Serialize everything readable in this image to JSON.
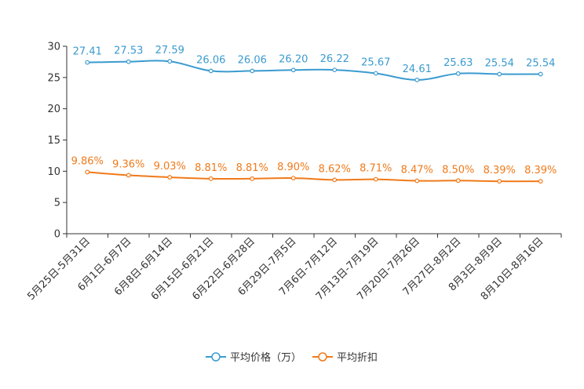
{
  "chart_data": {
    "type": "line",
    "title": "",
    "xlabel": "",
    "ylabel": "",
    "ylim": [
      0,
      30
    ],
    "yticks": [
      0,
      5,
      10,
      15,
      20,
      25,
      30
    ],
    "grid": false,
    "legend_position": "bottom-center",
    "categories": [
      "5月25日-5月31日",
      "6月1日-6月7日",
      "6月8日-6月14日",
      "6月15日-6月21日",
      "6月22日-6月28日",
      "6月29日-7月5日",
      "7月6日-7月12日",
      "7月13日-7月19日",
      "7月20日-7月26日",
      "7月27日-8月2日",
      "8月3日-8月9日",
      "8月10日-8月16日"
    ],
    "series": [
      {
        "name": "平均价格（万）",
        "color": "#3a9bd0",
        "values": [
          27.41,
          27.53,
          27.59,
          26.06,
          26.06,
          26.2,
          26.22,
          25.67,
          24.61,
          25.63,
          25.54,
          25.54
        ],
        "labels": [
          "27.41",
          "27.53",
          "27.59",
          "26.06",
          "26.06",
          "26.20",
          "26.22",
          "25.67",
          "24.61",
          "25.63",
          "25.54",
          "25.54"
        ]
      },
      {
        "name": "平均折扣",
        "color": "#f07a1a",
        "values": [
          9.86,
          9.36,
          9.03,
          8.81,
          8.81,
          8.9,
          8.62,
          8.71,
          8.47,
          8.5,
          8.39,
          8.39
        ],
        "labels": [
          "9.86%",
          "9.36%",
          "9.03%",
          "8.81%",
          "8.81%",
          "8.90%",
          "8.62%",
          "8.71%",
          "8.47%",
          "8.50%",
          "8.39%",
          "8.39%"
        ]
      }
    ]
  }
}
